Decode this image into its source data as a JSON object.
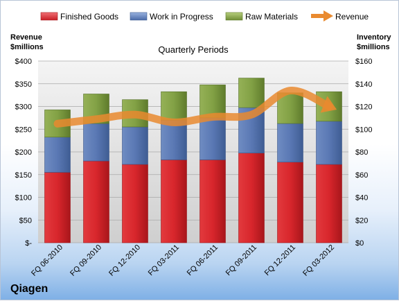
{
  "chart_data": {
    "type": "bar",
    "stacked": true,
    "title": "Quarterly Periods",
    "company": "Qiagen",
    "categories": [
      "FQ 06-2010",
      "FQ 09-2010",
      "FQ 12-2010",
      "FQ 03-2011",
      "FQ 06-2011",
      "FQ 09-2011",
      "FQ 12-2011",
      "FQ 03-2012"
    ],
    "left_axis": {
      "label_line1": "Revenue",
      "label_line2": "$millions",
      "range": [
        0,
        400
      ],
      "ticks": [
        0,
        50,
        100,
        150,
        200,
        250,
        300,
        350,
        400
      ],
      "tick_labels": [
        "$-",
        "$50",
        "$100",
        "$150",
        "$200",
        "$250",
        "$300",
        "$350",
        "$400"
      ]
    },
    "right_axis": {
      "label_line1": "Inventory",
      "label_line2": "$millions",
      "range": [
        0,
        160
      ],
      "ticks": [
        0,
        20,
        40,
        60,
        80,
        100,
        120,
        140,
        160
      ],
      "tick_labels": [
        "$0",
        "$20",
        "$40",
        "$60",
        "$80",
        "$100",
        "$120",
        "$140",
        "$160"
      ]
    },
    "series": [
      {
        "name": "Finished Goods",
        "axis": "right",
        "kind": "bar",
        "color": "#cc2026",
        "values": [
          62,
          72,
          69,
          73,
          73,
          79,
          71,
          69
        ]
      },
      {
        "name": "Work in Progress",
        "axis": "right",
        "kind": "bar",
        "color": "#4f6fa8",
        "values": [
          31,
          33,
          33,
          35,
          37,
          40,
          34,
          38
        ]
      },
      {
        "name": "Raw Materials",
        "axis": "right",
        "kind": "bar",
        "color": "#77953b",
        "values": [
          24,
          26,
          24,
          25,
          29,
          26,
          27,
          26
        ]
      },
      {
        "name": "Revenue",
        "axis": "left",
        "kind": "line",
        "color": "#e98a2f",
        "values": [
          262,
          272,
          282,
          265,
          277,
          282,
          335,
          300
        ]
      }
    ],
    "grid": true,
    "legend_position": "top"
  }
}
